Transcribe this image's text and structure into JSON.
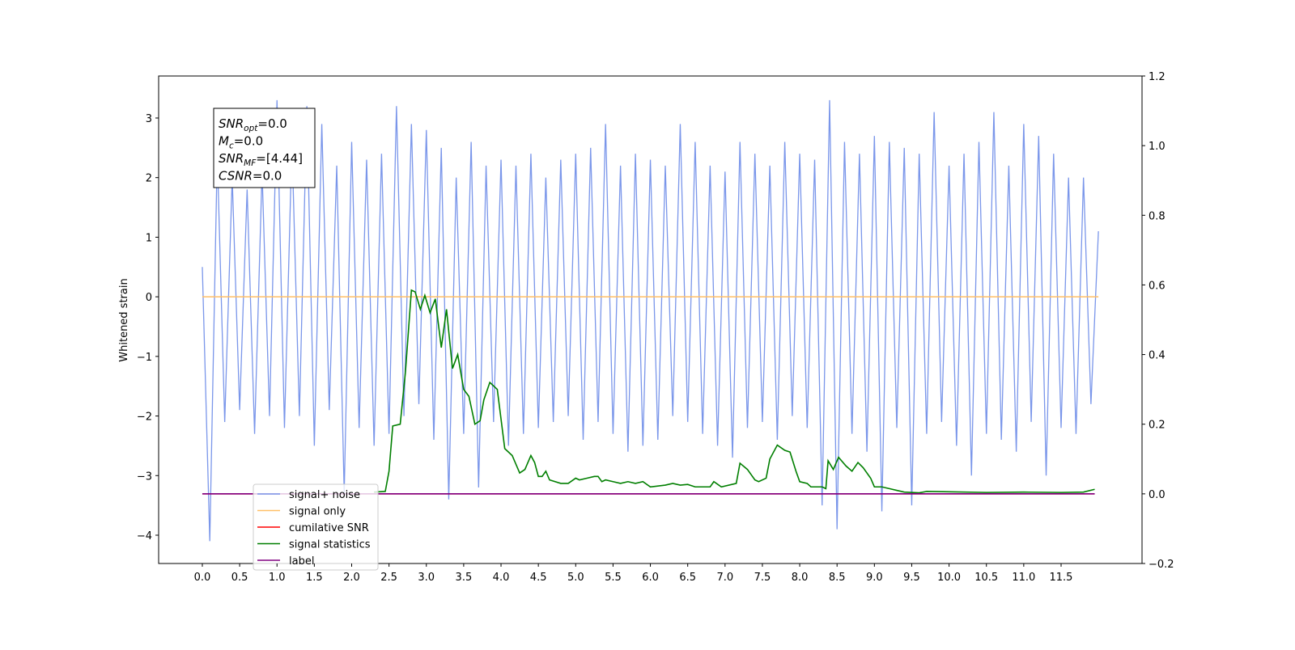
{
  "chart_data": {
    "type": "line",
    "ylabel": "Whitened strain",
    "xlim": [
      -0.585,
      12.584
    ],
    "ylim": [
      -4.475,
      3.705
    ],
    "y2lim": [
      -0.2,
      1.2
    ],
    "xticks": [
      {
        "value": 0,
        "label": "0.0"
      },
      0.5,
      {
        "value": 1,
        "label": "1.0"
      },
      1.5,
      {
        "value": 2,
        "label": "2.0"
      },
      2.5,
      {
        "value": 3,
        "label": "3.0"
      },
      3.5,
      {
        "value": 4,
        "label": "4.0"
      },
      4.5,
      {
        "value": 5,
        "label": "5.0"
      },
      5.5,
      {
        "value": 6,
        "label": "6.0"
      },
      6.5,
      {
        "value": 7,
        "label": "7.0"
      },
      7.5,
      {
        "value": 8,
        "label": "8.0"
      },
      8.5,
      {
        "value": 9,
        "label": "9.0"
      },
      9.5,
      {
        "value": 10,
        "label": "10.0"
      },
      10.5,
      {
        "value": 11,
        "label": "11.0"
      },
      11.5
    ],
    "yticks": [
      {
        "value": -4,
        "label": "−4"
      },
      {
        "value": -3,
        "label": "−3"
      },
      {
        "value": -2,
        "label": "−2"
      },
      {
        "value": -1,
        "label": "−1"
      },
      0,
      1,
      2,
      3
    ],
    "y2ticks": [
      {
        "value": -0.2,
        "label": "−0.2"
      },
      {
        "value": 0,
        "label": "0.0"
      },
      0.2,
      0.4,
      0.6,
      0.8,
      {
        "value": 1,
        "label": "1.0"
      },
      1.2
    ],
    "legend": "lower left",
    "annotation": [
      {
        "base": "SNR",
        "sub": "opt",
        "rest": "=0.0"
      },
      {
        "base": "M",
        "sub": "c",
        "rest": "=0.0"
      },
      {
        "base": "SNR",
        "sub": "MF",
        "rest": "=[4.44]"
      },
      {
        "base": "CSNR",
        "rest": "=0.0"
      }
    ],
    "series": [
      {
        "name": "signal+ noise",
        "color": "#7a96ea",
        "axis": "y",
        "x": [
          0.0,
          0.1,
          0.2,
          0.3,
          0.4,
          0.5,
          0.6,
          0.7,
          0.8,
          0.9,
          1.0,
          1.1,
          1.2,
          1.3,
          1.4,
          1.5,
          1.6,
          1.7,
          1.8,
          1.9,
          2.0,
          2.1,
          2.2,
          2.3,
          2.4,
          2.5,
          2.6,
          2.7,
          2.8,
          2.9,
          3.0,
          3.1,
          3.2,
          3.3,
          3.4,
          3.5,
          3.6,
          3.7,
          3.8,
          3.9,
          4.0,
          4.1,
          4.2,
          4.3,
          4.4,
          4.5,
          4.6,
          4.7,
          4.8,
          4.9,
          5.0,
          5.1,
          5.2,
          5.3,
          5.4,
          5.5,
          5.6,
          5.7,
          5.8,
          5.9,
          6.0,
          6.1,
          6.2,
          6.3,
          6.4,
          6.5,
          6.6,
          6.7,
          6.8,
          6.9,
          7.0,
          7.1,
          7.2,
          7.3,
          7.4,
          7.5,
          7.6,
          7.7,
          7.8,
          7.9,
          8.0,
          8.1,
          8.2,
          8.3,
          8.4,
          8.5,
          8.6,
          8.7,
          8.8,
          8.9,
          9.0,
          9.1,
          9.2,
          9.3,
          9.4,
          9.5,
          9.6,
          9.7,
          9.8,
          9.9,
          10.0,
          10.1,
          10.2,
          10.3,
          10.4,
          10.5,
          10.6,
          10.7,
          10.8,
          10.9,
          11.0,
          11.1,
          11.2,
          11.3,
          11.4,
          11.5,
          11.6,
          11.7,
          11.8,
          11.9,
          12.0
        ],
        "values": [
          0.5,
          -4.1,
          2.4,
          -2.1,
          2.0,
          -1.9,
          1.8,
          -2.3,
          2.1,
          -2.0,
          3.3,
          -2.2,
          2.6,
          -2.0,
          3.2,
          -2.5,
          2.9,
          -1.9,
          2.2,
          -3.3,
          2.6,
          -2.2,
          2.3,
          -2.5,
          2.4,
          -2.3,
          3.2,
          -2.0,
          2.9,
          -1.8,
          2.8,
          -2.4,
          2.5,
          -3.4,
          2.0,
          -2.3,
          2.6,
          -3.2,
          2.2,
          -2.1,
          2.3,
          -2.5,
          2.2,
          -2.3,
          2.4,
          -2.2,
          2.0,
          -2.1,
          2.3,
          -2.0,
          2.4,
          -2.4,
          2.5,
          -2.1,
          2.9,
          -2.3,
          2.2,
          -2.6,
          2.4,
          -2.5,
          2.3,
          -2.4,
          2.2,
          -2.0,
          2.9,
          -2.1,
          2.6,
          -2.3,
          2.2,
          -2.5,
          2.1,
          -2.7,
          2.6,
          -2.2,
          2.4,
          -2.1,
          2.2,
          -2.4,
          2.6,
          -2.0,
          2.4,
          -2.2,
          2.3,
          -3.5,
          3.3,
          -3.9,
          2.6,
          -2.3,
          2.4,
          -2.6,
          2.7,
          -3.6,
          2.6,
          -2.2,
          2.5,
          -3.5,
          2.4,
          -2.3,
          3.1,
          -2.1,
          2.2,
          -2.5,
          2.4,
          -3.0,
          2.6,
          -2.3,
          3.1,
          -2.4,
          2.2,
          -2.6,
          2.9,
          -2.1,
          2.7,
          -3.0,
          2.4,
          -2.2,
          2.0,
          -2.3,
          2.0,
          -1.8,
          1.1
        ]
      },
      {
        "name": "signal only",
        "color": "#ffbf66",
        "axis": "y",
        "x": [
          0.0,
          12.0
        ],
        "values": [
          0,
          0
        ]
      },
      {
        "name": "cumilative SNR",
        "color": "#ff0000",
        "axis": "y2",
        "x": [
          0.0,
          11.95
        ],
        "values": [
          0,
          0
        ]
      },
      {
        "name": "signal statistics",
        "color": "#007f00",
        "axis": "y2",
        "x": [
          2.3,
          2.45,
          2.5,
          2.55,
          2.65,
          2.72,
          2.8,
          2.85,
          2.92,
          2.98,
          3.05,
          3.12,
          3.2,
          3.27,
          3.35,
          3.42,
          3.5,
          3.57,
          3.65,
          3.72,
          3.77,
          3.85,
          3.95,
          4.05,
          4.15,
          4.25,
          4.32,
          4.4,
          4.45,
          4.5,
          4.55,
          4.6,
          4.65,
          4.8,
          4.9,
          5.0,
          5.05,
          5.15,
          5.25,
          5.3,
          5.35,
          5.4,
          5.5,
          5.6,
          5.7,
          5.8,
          5.9,
          6.0,
          6.2,
          6.3,
          6.4,
          6.5,
          6.6,
          6.8,
          6.85,
          6.95,
          7.15,
          7.2,
          7.3,
          7.4,
          7.45,
          7.55,
          7.6,
          7.7,
          7.8,
          7.87,
          7.95,
          8.0,
          8.1,
          8.15,
          8.3,
          8.35,
          8.38,
          8.45,
          8.52,
          8.62,
          8.7,
          8.78,
          8.85,
          8.95,
          9.0,
          9.1,
          9.2,
          9.3,
          9.4,
          9.6,
          9.7,
          10.0,
          10.5,
          11.0,
          11.5,
          11.8,
          11.95
        ],
        "values": [
          0.005,
          0.007,
          0.065,
          0.195,
          0.2,
          0.35,
          0.585,
          0.58,
          0.53,
          0.57,
          0.52,
          0.56,
          0.42,
          0.53,
          0.36,
          0.4,
          0.3,
          0.28,
          0.2,
          0.21,
          0.27,
          0.32,
          0.3,
          0.13,
          0.11,
          0.06,
          0.07,
          0.11,
          0.09,
          0.05,
          0.05,
          0.065,
          0.04,
          0.03,
          0.03,
          0.045,
          0.04,
          0.045,
          0.05,
          0.05,
          0.035,
          0.04,
          0.035,
          0.03,
          0.035,
          0.03,
          0.035,
          0.02,
          0.025,
          0.03,
          0.025,
          0.027,
          0.02,
          0.02,
          0.035,
          0.02,
          0.03,
          0.088,
          0.07,
          0.04,
          0.035,
          0.045,
          0.1,
          0.14,
          0.125,
          0.12,
          0.065,
          0.035,
          0.03,
          0.02,
          0.02,
          0.015,
          0.095,
          0.07,
          0.105,
          0.08,
          0.065,
          0.09,
          0.075,
          0.045,
          0.02,
          0.02,
          0.015,
          0.01,
          0.005,
          0.003,
          0.007,
          0.006,
          0.004,
          0.005,
          0.004,
          0.005,
          0.013
        ]
      },
      {
        "name": "label",
        "color": "#800080",
        "axis": "y2",
        "x": [
          0.0,
          11.95
        ],
        "values": [
          0,
          0
        ]
      }
    ]
  }
}
